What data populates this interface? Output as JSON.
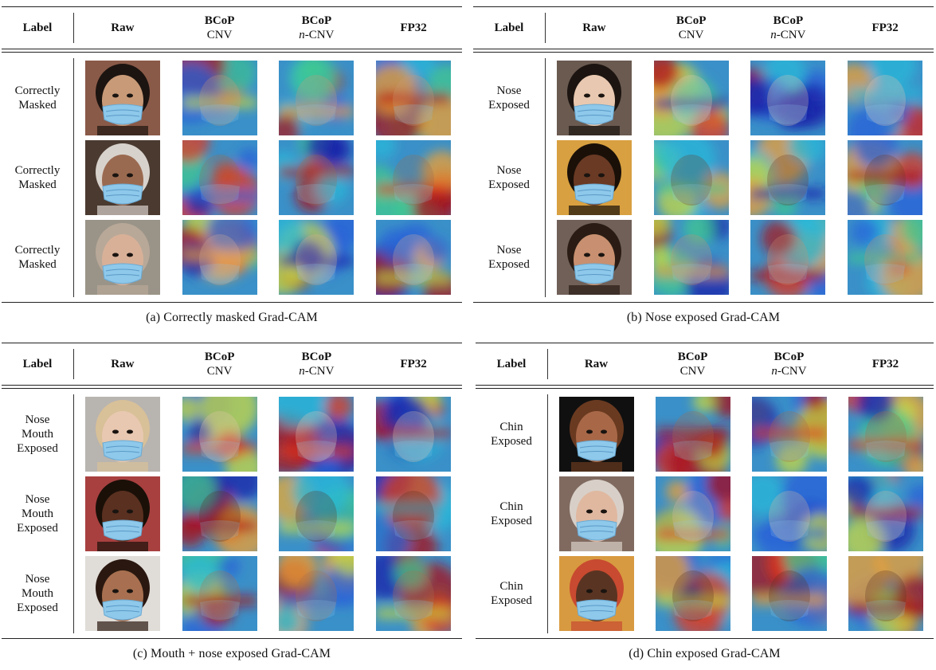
{
  "headers": {
    "label": "Label",
    "raw": "Raw",
    "bcop": "BCoP",
    "cnv": "CNV",
    "ncnv_n": "n",
    "ncnv_rest": "-CNV",
    "fp32": "FP32"
  },
  "panels": [
    {
      "id": "a",
      "caption": "(a) Correctly masked Grad-CAM",
      "rows": [
        {
          "label_lines": [
            "Correctly",
            "Masked"
          ],
          "skin": "#c89a78",
          "hair": "#1c1410",
          "bg": "#8a5a48"
        },
        {
          "label_lines": [
            "Correctly",
            "Masked"
          ],
          "skin": "#9a6a50",
          "hair": "#d8d2cc",
          "bg": "#4a3a30"
        },
        {
          "label_lines": [
            "Correctly",
            "Masked"
          ],
          "skin": "#d8b098",
          "hair": "#b8a898",
          "bg": "#9a9488"
        }
      ]
    },
    {
      "id": "b",
      "caption": "(b) Nose exposed Grad-CAM",
      "rows": [
        {
          "label_lines": [
            "Nose",
            "Exposed"
          ],
          "skin": "#e8c8b0",
          "hair": "#1c1410",
          "bg": "#6a5a50"
        },
        {
          "label_lines": [
            "Nose",
            "Exposed"
          ],
          "skin": "#6a3a24",
          "hair": "#1a1008",
          "bg": "#d8a040"
        },
        {
          "label_lines": [
            "Nose",
            "Exposed"
          ],
          "skin": "#c89070",
          "hair": "#2a1c14",
          "bg": "#706058"
        }
      ]
    },
    {
      "id": "c",
      "caption": "(c) Mouth + nose exposed Grad-CAM",
      "rows": [
        {
          "label_lines": [
            "Nose",
            "Mouth",
            "Exposed"
          ],
          "skin": "#e8c8b0",
          "hair": "#d8c098",
          "bg": "#b8b4b0"
        },
        {
          "label_lines": [
            "Nose",
            "Mouth",
            "Exposed"
          ],
          "skin": "#5a3020",
          "hair": "#1a1008",
          "bg": "#a84040"
        },
        {
          "label_lines": [
            "Nose",
            "Mouth",
            "Exposed"
          ],
          "skin": "#a87050",
          "hair": "#2a1810",
          "bg": "#e0dcd8"
        }
      ]
    },
    {
      "id": "d",
      "caption": "(d) Chin exposed Grad-CAM",
      "rows": [
        {
          "label_lines": [
            "Chin",
            "Exposed"
          ],
          "skin": "#a86848",
          "hair": "#6a3a20",
          "bg": "#101010"
        },
        {
          "label_lines": [
            "Chin",
            "Exposed"
          ],
          "skin": "#e0b8a0",
          "hair": "#d8d0c8",
          "bg": "#806a60"
        },
        {
          "label_lines": [
            "Chin",
            "Exposed"
          ],
          "skin": "#5a3422",
          "hair": "#c84a30",
          "bg": "#d89a40"
        }
      ]
    }
  ]
}
